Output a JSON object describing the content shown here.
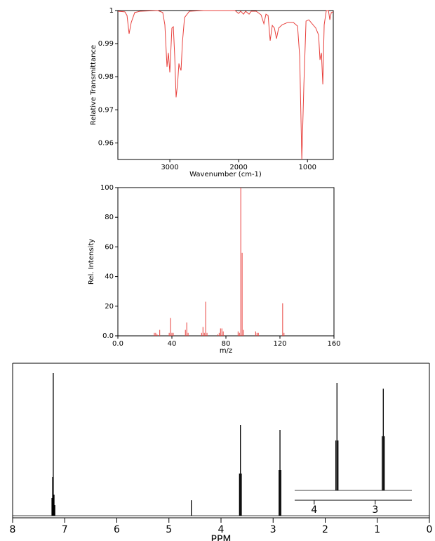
{
  "chart_data": [
    {
      "type": "line",
      "ylabel": "Relative Transmittance",
      "xlabel": "Wavenumber (cm-1)",
      "color": "#e8403c",
      "xlim": [
        3755,
        625
      ],
      "ylim": [
        0.955,
        1
      ],
      "xticks": [
        3000,
        2000,
        1000
      ],
      "yticks": [
        1,
        0.99,
        0.98,
        0.97,
        0.96
      ],
      "x": [
        3755,
        3653,
        3622,
        3592,
        3561,
        3510,
        3429,
        3174,
        3103,
        3072,
        3041,
        3021,
        3000,
        2970,
        2949,
        2929,
        2909,
        2888,
        2868,
        2858,
        2837,
        2817,
        2786,
        2715,
        2511,
        2052,
        2001,
        1970,
        1929,
        1899,
        1848,
        1817,
        1745,
        1674,
        1633,
        1603,
        1572,
        1542,
        1511,
        1480,
        1450,
        1419,
        1368,
        1287,
        1205,
        1144,
        1113,
        1082,
        1052,
        1021,
        980,
        879,
        838,
        818,
        797,
        777,
        757,
        726,
        695,
        675,
        654,
        625
      ],
      "values": [
        0.9998,
        0.9996,
        0.9985,
        0.993,
        0.9964,
        0.9994,
        0.9998,
        1.0,
        0.9994,
        0.9957,
        0.983,
        0.9872,
        0.9813,
        0.9947,
        0.9951,
        0.9862,
        0.9738,
        0.9777,
        0.984,
        0.983,
        0.9819,
        0.9904,
        0.9979,
        0.9998,
        1.0,
        1.0,
        0.9991,
        0.9998,
        0.9989,
        0.9998,
        0.9989,
        0.9998,
        0.9998,
        0.9987,
        0.996,
        0.9989,
        0.9985,
        0.9909,
        0.9955,
        0.9947,
        0.9915,
        0.9947,
        0.9957,
        0.9964,
        0.9964,
        0.9953,
        0.9862,
        0.955,
        0.9777,
        0.9968,
        0.9972,
        0.9947,
        0.9926,
        0.9851,
        0.9872,
        0.9777,
        0.9957,
        1.0,
        1.0,
        0.9972,
        0.9994,
        0.9996
      ]
    },
    {
      "type": "bar",
      "ylabel": "Rel. Intensity",
      "xlabel": "m/z",
      "color": "#e8403c",
      "xlim": [
        0,
        160
      ],
      "ylim": [
        0,
        100
      ],
      "xticks": [
        {
          "value": 0,
          "label": "0.0"
        },
        40,
        80,
        120,
        160
      ],
      "yticks": [
        {
          "value": 0,
          "label": "0.0"
        },
        20,
        40,
        60,
        80,
        100
      ],
      "x": [
        27,
        28,
        29,
        31,
        38,
        39,
        40,
        41,
        50,
        51,
        52,
        62,
        63,
        64,
        65,
        66,
        74,
        75,
        76,
        77,
        78,
        89,
        90,
        91,
        92,
        93,
        102,
        103,
        104,
        122,
        123
      ],
      "values": [
        2,
        2,
        1,
        4,
        2,
        12,
        2,
        2,
        4,
        9,
        2,
        2,
        6,
        2,
        23,
        2,
        1,
        2,
        5,
        5,
        3,
        3,
        2,
        100,
        56,
        4,
        3,
        2,
        2,
        22,
        2
      ]
    },
    {
      "type": "stem",
      "xlabel": "PPM",
      "color": "#000000",
      "xlim": [
        8,
        0
      ],
      "xticks": [
        8,
        7,
        6,
        5,
        4,
        3,
        2,
        1,
        0
      ],
      "x": [
        7.245,
        7.232,
        7.22,
        7.205,
        7.19,
        4.57,
        3.645,
        3.627,
        3.61,
        2.885,
        2.868,
        2.851
      ],
      "values": [
        25,
        55,
        203,
        30,
        15,
        22,
        60,
        129,
        60,
        65,
        122,
        65
      ],
      "inset": {
        "xlim": [
          4.32,
          2.4
        ],
        "xticks": [
          4,
          3
        ]
      }
    }
  ]
}
